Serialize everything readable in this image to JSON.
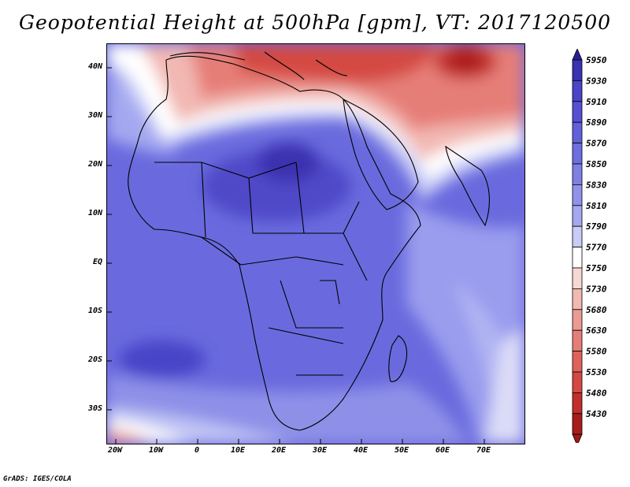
{
  "title": "Geopotential Height at 500hPa [gpm], VT: 2017120500",
  "footer": "GrADS: IGES/COLA",
  "map": {
    "lat_ticks": [
      "40N",
      "30N",
      "20N",
      "10N",
      "EQ",
      "10S",
      "20S",
      "30S"
    ],
    "lon_ticks": [
      "20W",
      "10W",
      "0",
      "10E",
      "20E",
      "30E",
      "40E",
      "50E",
      "60E",
      "70E"
    ]
  },
  "colorbar": {
    "levels": [
      "5950",
      "5930",
      "5910",
      "5890",
      "5870",
      "5850",
      "5830",
      "5810",
      "5790",
      "5770",
      "5750",
      "5730",
      "5680",
      "5630",
      "5580",
      "5530",
      "5480",
      "5430"
    ],
    "colors": [
      "#3a32b0",
      "#4a44c8",
      "#5550d2",
      "#6160d8",
      "#6e6ede",
      "#7e80e4",
      "#9092ea",
      "#a4a8f0",
      "#c8ccf6",
      "#ffffff",
      "#f8d8d4",
      "#f2b8b2",
      "#ec9a94",
      "#e67e78",
      "#e0625c",
      "#d44842",
      "#c22e2a",
      "#a81c1a"
    ],
    "top_arrow_color": "#2a1e98",
    "bottom_arrow_color": "#a01818"
  }
}
